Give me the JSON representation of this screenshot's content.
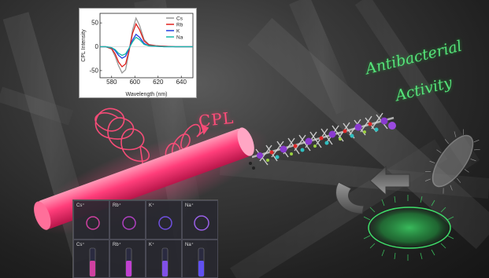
{
  "labels": {
    "cpl": "CPL",
    "antibacterial_line1": "Antibacterial",
    "antibacterial_line2": "Activity"
  },
  "panel": {
    "top_row": [
      "Cs⁺",
      "Rb⁺",
      "K⁺",
      "Na⁺"
    ],
    "bottom_row": [
      "Cs⁺",
      "Rb⁺",
      "K⁺",
      "Na⁺"
    ]
  },
  "colors": {
    "cs": "#999999",
    "rb": "#e0201c",
    "k": "#1f3ee0",
    "na": "#18b8a8",
    "rod": "#ff3d7a",
    "antibacterial": "#55e37a"
  },
  "chart_data": {
    "type": "line",
    "xlabel": "Wavelength (nm)",
    "ylabel": "CPL Intensity",
    "xlim": [
      570,
      650
    ],
    "ylim": [
      -65,
      70
    ],
    "xticks": [
      580,
      600,
      620,
      640
    ],
    "yticks": [
      -50,
      0,
      50
    ],
    "legend": "top-right",
    "x": [
      570,
      575,
      580,
      583,
      586,
      589,
      592,
      595,
      598,
      601,
      604,
      608,
      612,
      618,
      625,
      635,
      645,
      650
    ],
    "series": [
      {
        "name": "Cs",
        "values": [
          0,
          0,
          -5,
          -20,
          -40,
          -55,
          -48,
          -10,
          35,
          60,
          45,
          15,
          5,
          2,
          1,
          0,
          0,
          0
        ]
      },
      {
        "name": "Rb",
        "values": [
          0,
          0,
          -4,
          -15,
          -32,
          -42,
          -36,
          -8,
          28,
          48,
          36,
          12,
          4,
          2,
          1,
          0,
          0,
          0
        ]
      },
      {
        "name": "K",
        "values": [
          0,
          0,
          -2,
          -8,
          -18,
          -24,
          -20,
          -4,
          14,
          26,
          20,
          7,
          2,
          1,
          0,
          0,
          0,
          0
        ]
      },
      {
        "name": "Na",
        "values": [
          0,
          0,
          -2,
          -6,
          -14,
          -18,
          -15,
          -3,
          10,
          20,
          15,
          5,
          2,
          1,
          0,
          0,
          0,
          0
        ]
      }
    ]
  }
}
